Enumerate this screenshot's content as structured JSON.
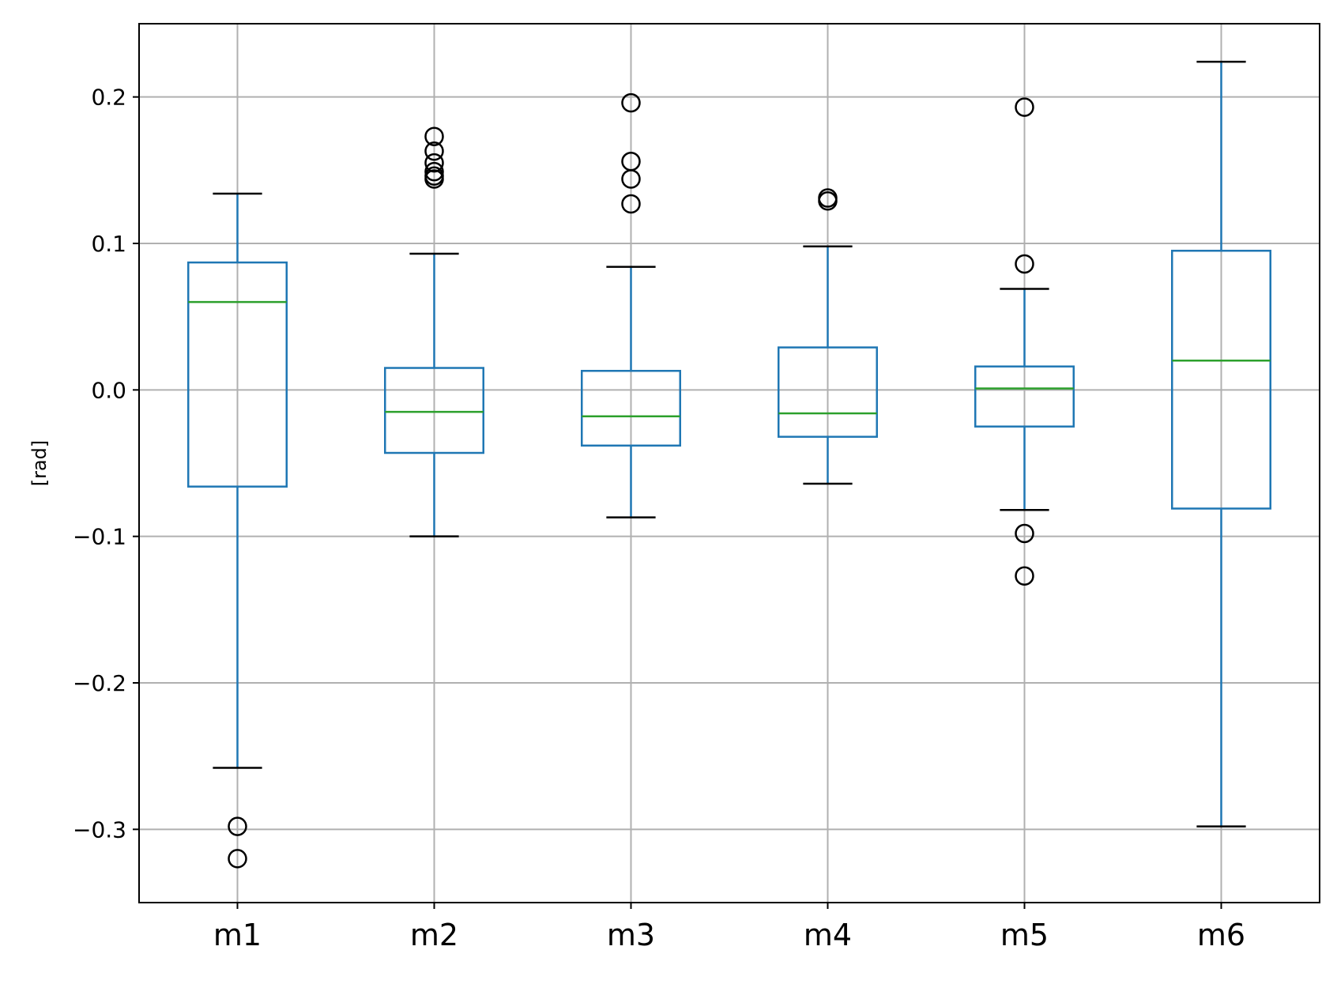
{
  "chart_data": {
    "type": "box",
    "ylabel": "[rad]",
    "xlabel": "",
    "title": "",
    "ylim": [
      -0.35,
      0.25
    ],
    "yticks": [
      -0.3,
      -0.2,
      -0.1,
      0.0,
      0.1,
      0.2
    ],
    "ytick_labels": [
      "−0.3",
      "−0.2",
      "−0.1",
      "0.0",
      "0.1",
      "0.2"
    ],
    "grid": true,
    "categories": [
      "m1",
      "m2",
      "m3",
      "m4",
      "m5",
      "m6"
    ],
    "boxes": [
      {
        "name": "m1",
        "whisker_low": -0.258,
        "q1": -0.066,
        "median": 0.06,
        "q3": 0.087,
        "whisker_high": 0.134,
        "outliers": [
          -0.298,
          -0.32
        ]
      },
      {
        "name": "m2",
        "whisker_low": -0.1,
        "q1": -0.043,
        "median": -0.015,
        "q3": 0.015,
        "whisker_high": 0.093,
        "outliers": [
          0.173,
          0.163,
          0.155,
          0.149,
          0.146,
          0.144
        ]
      },
      {
        "name": "m3",
        "whisker_low": -0.087,
        "q1": -0.038,
        "median": -0.018,
        "q3": 0.013,
        "whisker_high": 0.084,
        "outliers": [
          0.196,
          0.156,
          0.144,
          0.127
        ]
      },
      {
        "name": "m4",
        "whisker_low": -0.064,
        "q1": -0.032,
        "median": -0.016,
        "q3": 0.029,
        "whisker_high": 0.098,
        "outliers": [
          0.131,
          0.129
        ]
      },
      {
        "name": "m5",
        "whisker_low": -0.082,
        "q1": -0.025,
        "median": 0.001,
        "q3": 0.016,
        "whisker_high": 0.069,
        "outliers": [
          0.193,
          0.086,
          -0.098,
          -0.127
        ]
      },
      {
        "name": "m6",
        "whisker_low": -0.298,
        "q1": -0.081,
        "median": 0.02,
        "q3": 0.095,
        "whisker_high": 0.224,
        "outliers": []
      }
    ],
    "colors": {
      "box": "#1f77b4",
      "median": "#2ca02c",
      "whisker_cap": "#000000",
      "outlier": "#000000",
      "grid": "#b0b0b0",
      "axes": "#000000"
    }
  }
}
